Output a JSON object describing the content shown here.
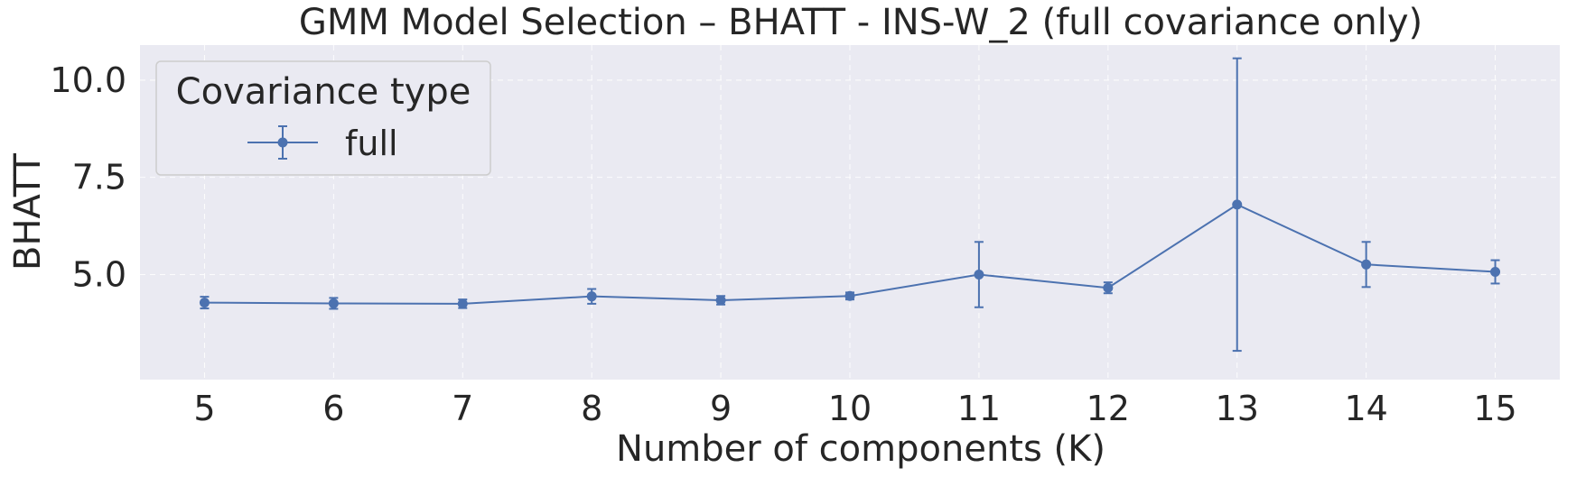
{
  "chart_data": {
    "type": "line",
    "title": "GMM Model Selection – BHATT - INS-W_2 (full covariance only)",
    "xlabel": "Number of components (K)",
    "ylabel": "BHATT",
    "x": [
      5,
      6,
      7,
      8,
      9,
      10,
      11,
      12,
      13,
      14,
      15
    ],
    "xlim": [
      4.5,
      15.5
    ],
    "ylim": [
      2.3,
      10.9
    ],
    "yticks": [
      "5.0",
      "7.5",
      "10.0"
    ],
    "grid": true,
    "legend": {
      "title": "Covariance type",
      "placement": "top-left"
    },
    "series": [
      {
        "name": "full",
        "color": "#4c72b0",
        "values": [
          4.28,
          4.26,
          4.25,
          4.44,
          4.34,
          4.45,
          5.0,
          4.66,
          6.8,
          5.26,
          5.07
        ],
        "error": [
          0.15,
          0.14,
          0.11,
          0.19,
          0.11,
          0.09,
          0.84,
          0.14,
          3.76,
          0.58,
          0.3
        ]
      }
    ]
  }
}
